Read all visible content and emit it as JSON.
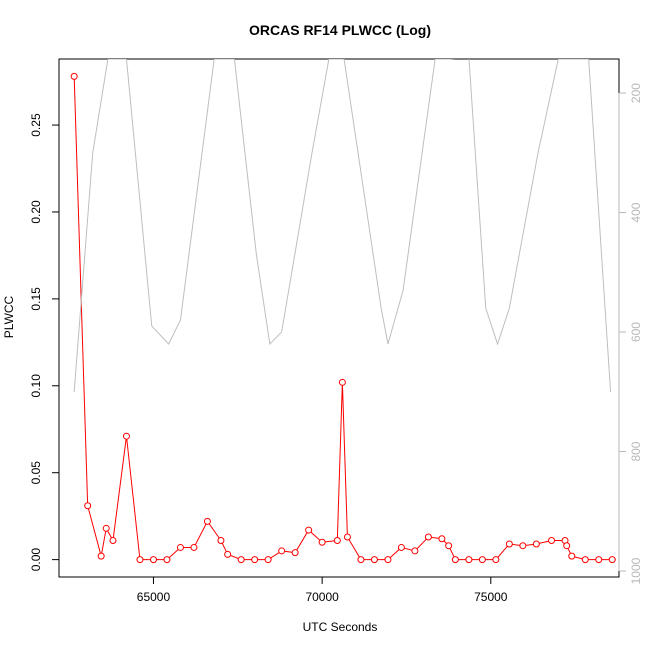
{
  "chart_data": {
    "type": "line",
    "title": "ORCAS RF14 PLWCC (Log)",
    "xlabel": "UTC Seconds",
    "ylabel": "PLWCC",
    "xlim": [
      62200,
      78800
    ],
    "ylim": [
      -0.01,
      0.288
    ],
    "x_ticks": [
      65000,
      70000,
      75000
    ],
    "y_ticks": [
      0.0,
      0.05,
      0.1,
      0.15,
      0.2,
      0.25
    ],
    "y_tick_labels": [
      "0.00",
      "0.05",
      "0.10",
      "0.15",
      "0.20",
      "0.25"
    ],
    "y2_ticks": [
      200,
      400,
      600,
      800,
      1000
    ],
    "y2_tick_labels": [
      "200",
      "400",
      "600",
      "800",
      "1000"
    ],
    "y2_range": [
      1010,
      143
    ],
    "colors": {
      "primary": "#ff0000",
      "secondary": "#bebebe",
      "axis": "#000000",
      "axis2": "#b8b8b8"
    },
    "series": [
      {
        "color": "#ff0000",
        "style": "line-with-points",
        "x": [
          62650,
          63050,
          63450,
          63600,
          63800,
          64200,
          64600,
          65000,
          65400,
          65800,
          66200,
          66600,
          67000,
          67200,
          67600,
          68000,
          68400,
          68800,
          69200,
          69600,
          70000,
          70450,
          70600,
          70750,
          71150,
          71550,
          71950,
          72350,
          72750,
          73150,
          73550,
          73750,
          73950,
          74350,
          74750,
          75150,
          75550,
          75950,
          76350,
          76800,
          77200,
          77250,
          77400,
          77800,
          78200,
          78600
        ],
        "y": [
          0.278,
          0.031,
          0.002,
          0.018,
          0.011,
          0.071,
          0.0,
          0.0,
          0.0,
          0.007,
          0.007,
          0.022,
          0.011,
          0.003,
          0.0,
          0.0,
          0.0,
          0.005,
          0.004,
          0.017,
          0.01,
          0.011,
          0.102,
          0.013,
          0.0,
          0.0,
          0.0,
          0.007,
          0.005,
          0.013,
          0.012,
          0.008,
          0.0,
          0.0,
          0.0,
          0.0,
          0.009,
          0.008,
          0.009,
          0.011,
          0.011,
          0.008,
          0.002,
          0.0,
          0.0,
          0.0
        ]
      },
      {
        "color": "#bebebe",
        "style": "line",
        "axis": "right",
        "x": [
          62650,
          63200,
          63650,
          64200,
          64950,
          65450,
          65800,
          66800,
          67400,
          68050,
          68450,
          68800,
          69700,
          70200,
          70650,
          71750,
          71950,
          72400,
          73350,
          73800,
          74350,
          74850,
          75200,
          75550,
          76400,
          77000,
          77900,
          78550
        ],
        "y": [
          700,
          300,
          143,
          143,
          590,
          620,
          580,
          143,
          143,
          470,
          620,
          600,
          300,
          143,
          143,
          560,
          620,
          530,
          143,
          143,
          140,
          560,
          620,
          560,
          300,
          143,
          143,
          700
        ]
      }
    ]
  }
}
